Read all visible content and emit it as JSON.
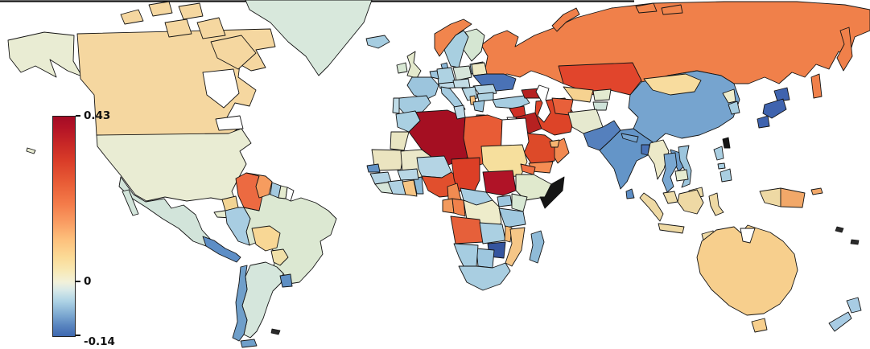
{
  "figure": {
    "background": "#ffffff"
  },
  "chart_data": {
    "type": "choropleth_map",
    "title": "",
    "projection": "world-equirectangular",
    "legend_position": "left",
    "no_data_color": "#ffffff",
    "colorbar": {
      "orientation": "vertical",
      "min": -0.14,
      "max": 0.43,
      "ticks": [
        {
          "label": "0.43",
          "value": 0.43
        },
        {
          "label": "0",
          "value": 0
        },
        {
          "label": "-0.14",
          "value": -0.14
        }
      ],
      "gradient_stops": [
        {
          "pos": 0,
          "color": "#a40b25"
        },
        {
          "pos": 0.05,
          "color": "#b31326"
        },
        {
          "pos": 0.12,
          "color": "#c62626"
        },
        {
          "pos": 0.2,
          "color": "#d93c28"
        },
        {
          "pos": 0.3,
          "color": "#e85c36"
        },
        {
          "pos": 0.4,
          "color": "#f47c4a"
        },
        {
          "pos": 0.48,
          "color": "#f99c62"
        },
        {
          "pos": 0.56,
          "color": "#fdc07c"
        },
        {
          "pos": 0.64,
          "color": "#fbda96"
        },
        {
          "pos": 0.7,
          "color": "#f8e8b4"
        },
        {
          "pos": 0.754,
          "color": "#f2f1da"
        },
        {
          "pos": 0.79,
          "color": "#d8e9e8"
        },
        {
          "pos": 0.84,
          "color": "#aed3e5"
        },
        {
          "pos": 0.9,
          "color": "#7fabd2"
        },
        {
          "pos": 0.95,
          "color": "#5a86c0"
        },
        {
          "pos": 1,
          "color": "#3e68b0"
        }
      ]
    },
    "countries": {
      "canada": {
        "name": "Canada",
        "value": 0.1,
        "color": "#f5d7a0"
      },
      "usa": {
        "name": "United States",
        "value": 0.01,
        "color": "#e9ecd3"
      },
      "greenland": {
        "name": "Greenland",
        "value": 0.0,
        "color": "#d8e8dc"
      },
      "mexico": {
        "name": "Mexico",
        "value": -0.01,
        "color": "#d2e4da"
      },
      "central_america": {
        "name": "Central America",
        "value": -0.09,
        "color": "#5d8ec6"
      },
      "cuba": {
        "name": "Cuba",
        "value": 0.01,
        "color": "#e8edd2"
      },
      "hispaniola": {
        "name": "Hispaniola",
        "value": -0.07,
        "color": "#74a3cf"
      },
      "colombia": {
        "name": "Colombia",
        "value": 0.25,
        "color": "#ec6a41"
      },
      "venezuela": {
        "name": "Venezuela",
        "value": 0.17,
        "color": "#f69c5f"
      },
      "guyana": {
        "name": "Guyana",
        "value": -0.05,
        "color": "#a3c9df"
      },
      "suriname": {
        "name": "Suriname",
        "value": 0.01,
        "color": "#e5ebcf"
      },
      "french_guiana": {
        "name": "French Guiana",
        "value": null,
        "color": "#ffffff"
      },
      "ecuador": {
        "name": "Ecuador",
        "value": 0.09,
        "color": "#f2d494"
      },
      "peru": {
        "name": "Peru",
        "value": -0.04,
        "color": "#a8cde2"
      },
      "brazil": {
        "name": "Brazil",
        "value": 0.005,
        "color": "#dce8d2"
      },
      "bolivia": {
        "name": "Bolivia",
        "value": 0.09,
        "color": "#f8d795"
      },
      "paraguay": {
        "name": "Paraguay",
        "value": 0.05,
        "color": "#f0e0a8"
      },
      "chile": {
        "name": "Chile",
        "value": -0.075,
        "color": "#6f9fca"
      },
      "argentina": {
        "name": "Argentina",
        "value": -0.005,
        "color": "#d5e6dc"
      },
      "uruguay": {
        "name": "Uruguay",
        "value": -0.09,
        "color": "#5e8fc4"
      },
      "falkland": {
        "name": "Falkland Is.",
        "value": null,
        "color": "#333333"
      },
      "iceland": {
        "name": "Iceland",
        "value": -0.04,
        "color": "#a6cde1"
      },
      "ireland": {
        "name": "Ireland",
        "value": -0.01,
        "color": "#d8e8d4"
      },
      "uk": {
        "name": "United Kingdom",
        "value": 0.015,
        "color": "#e4e9cc"
      },
      "norway": {
        "name": "Norway",
        "value": 0.21,
        "color": "#f1854d"
      },
      "sweden": {
        "name": "Sweden",
        "value": -0.04,
        "color": "#a8cfe0"
      },
      "finland": {
        "name": "Finland",
        "value": 0.0,
        "color": "#d5e6d2"
      },
      "baltics": {
        "name": "Baltic States",
        "value": -0.03,
        "color": "#b6d6e4"
      },
      "denmark": {
        "name": "Denmark",
        "value": -0.06,
        "color": "#8ab6d6"
      },
      "benelux": {
        "name": "Benelux",
        "value": -0.05,
        "color": "#9cc5dd"
      },
      "germany": {
        "name": "Germany",
        "value": -0.035,
        "color": "#aed2e2"
      },
      "poland": {
        "name": "Poland",
        "value": -0.01,
        "color": "#d6e5da"
      },
      "belarus": {
        "name": "Belarus",
        "value": 0.03,
        "color": "#ede9c4"
      },
      "ukraine": {
        "name": "Ukraine",
        "value": -0.105,
        "color": "#4a72b6"
      },
      "france": {
        "name": "France",
        "value": -0.05,
        "color": "#9cc5dd"
      },
      "spain": {
        "name": "Spain",
        "value": -0.045,
        "color": "#a4cbe0"
      },
      "portugal": {
        "name": "Portugal",
        "value": -0.025,
        "color": "#c0dce7"
      },
      "italy": {
        "name": "Italy",
        "value": -0.045,
        "color": "#a4cbe0"
      },
      "alpine_states": {
        "name": "Switzerland / Austria",
        "value": -0.03,
        "color": "#bcd8e6"
      },
      "czech_hungary": {
        "name": "Czechia / Hungary",
        "value": -0.02,
        "color": "#c2dce5"
      },
      "romania": {
        "name": "Romania",
        "value": -0.03,
        "color": "#b8d6e4"
      },
      "balkans": {
        "name": "Western Balkans",
        "value": -0.03,
        "color": "#b6d6e4"
      },
      "bulgaria": {
        "name": "Bulgaria",
        "value": -0.035,
        "color": "#aed2e2"
      },
      "albania": {
        "name": "Albania",
        "value": 0.13,
        "color": "#f5bf7e"
      },
      "greece": {
        "name": "Greece",
        "value": -0.05,
        "color": "#9cc5dd"
      },
      "turkey": {
        "name": "Turkey",
        "value": -0.04,
        "color": "#a6cde1"
      },
      "russia": {
        "name": "Russia",
        "value": 0.23,
        "color": "#f0804a"
      },
      "kazakhstan": {
        "name": "Kazakhstan",
        "value": 0.31,
        "color": "#e1452c"
      },
      "uzbekistan": {
        "name": "Uzbekistan",
        "value": 0.1,
        "color": "#f6d290"
      },
      "turkmenistan": {
        "name": "Turkmenistan",
        "value": 0.27,
        "color": "#e8603a"
      },
      "kyrgyzstan": {
        "name": "Kyrgyzstan",
        "value": 0.01,
        "color": "#e3ead0"
      },
      "tajikistan": {
        "name": "Tajikistan",
        "value": -0.01,
        "color": "#cfe3da"
      },
      "afghanistan": {
        "name": "Afghanistan",
        "value": 0.015,
        "color": "#e6e9cf"
      },
      "pakistan": {
        "name": "Pakistan",
        "value": -0.1,
        "color": "#5580bd"
      },
      "india": {
        "name": "India",
        "value": -0.085,
        "color": "#6495c8"
      },
      "nepal": {
        "name": "Nepal",
        "value": -0.07,
        "color": "#74a3cf"
      },
      "bangladesh": {
        "name": "Bangladesh",
        "value": -0.105,
        "color": "#4a72b6"
      },
      "sri_lanka": {
        "name": "Sri Lanka",
        "value": -0.09,
        "color": "#5d8ec6"
      },
      "china": {
        "name": "China",
        "value": -0.07,
        "color": "#76a4cf"
      },
      "mongolia": {
        "name": "Mongolia",
        "value": 0.085,
        "color": "#f8dc9e"
      },
      "north_korea": {
        "name": "North Korea",
        "value": 0.02,
        "color": "#efedcc"
      },
      "south_korea": {
        "name": "South Korea",
        "value": -0.04,
        "color": "#a6cde1"
      },
      "japan": {
        "name": "Japan",
        "value": -0.12,
        "color": "#3f63ae"
      },
      "taiwan": {
        "name": "Taiwan",
        "value": null,
        "color": "#151515"
      },
      "myanmar": {
        "name": "Myanmar",
        "value": 0.02,
        "color": "#ece9c8"
      },
      "thailand": {
        "name": "Thailand",
        "value": -0.065,
        "color": "#79a7d1"
      },
      "laos": {
        "name": "Laos",
        "value": -0.075,
        "color": "#6d9cca"
      },
      "vietnam": {
        "name": "Vietnam",
        "value": -0.05,
        "color": "#9cc5dd"
      },
      "cambodia": {
        "name": "Cambodia",
        "value": 0.01,
        "color": "#e6ecd0"
      },
      "malaysia": {
        "name": "Malaysia",
        "value": 0.05,
        "color": "#eeddab"
      },
      "indonesia": {
        "name": "Indonesia",
        "value": 0.06,
        "color": "#eed9a4"
      },
      "philippines": {
        "name": "Philippines",
        "value": -0.04,
        "color": "#a9cee1"
      },
      "papua_new_guinea": {
        "name": "Papua New Guinea",
        "value": 0.16,
        "color": "#f2a869"
      },
      "australia": {
        "name": "Australia",
        "value": 0.1,
        "color": "#f7cf8d"
      },
      "new_zealand": {
        "name": "New Zealand",
        "value": -0.045,
        "color": "#a8cce4"
      },
      "pacific_islands": {
        "name": "Pacific Islands",
        "value": null,
        "color": "#333333"
      },
      "caucasus": {
        "name": "Azerbaijan / Caucasus",
        "value": 0.36,
        "color": "#b52222"
      },
      "syria": {
        "name": "Syria",
        "value": 0.34,
        "color": "#d03026"
      },
      "iraq": {
        "name": "Iraq",
        "value": 0.38,
        "color": "#b62121"
      },
      "iran": {
        "name": "Iran",
        "value": 0.31,
        "color": "#dd4428"
      },
      "jordan_israel": {
        "name": "Jordan / Israel",
        "value": null,
        "color": "#ffffff"
      },
      "saudi_arabia": {
        "name": "Saudi Arabia",
        "value": 0.3,
        "color": "#dd4a29"
      },
      "yemen": {
        "name": "Yemen",
        "value": 0.19,
        "color": "#f58d54"
      },
      "oman": {
        "name": "Oman",
        "value": 0.19,
        "color": "#f28950"
      },
      "uae": {
        "name": "United Arab Emirates",
        "value": 0.14,
        "color": "#f8b470"
      },
      "morocco": {
        "name": "Morocco",
        "value": -0.04,
        "color": "#aad0e2"
      },
      "algeria": {
        "name": "Algeria",
        "value": 0.42,
        "color": "#a50f22"
      },
      "tunisia": {
        "name": "Tunisia",
        "value": -0.03,
        "color": "#bcd8e6"
      },
      "libya": {
        "name": "Libya",
        "value": 0.28,
        "color": "#e85c36"
      },
      "egypt": {
        "name": "Egypt",
        "value": null,
        "color": "#ffffff"
      },
      "western_sahara": {
        "name": "Western Sahara",
        "value": 0.03,
        "color": "#e9e5c2"
      },
      "mauritania": {
        "name": "Mauritania",
        "value": 0.03,
        "color": "#ebe4c0"
      },
      "mali": {
        "name": "Mali",
        "value": 0.02,
        "color": "#ebe8c9"
      },
      "senegal": {
        "name": "Senegal",
        "value": -0.085,
        "color": "#6292c5"
      },
      "guinea": {
        "name": "Guinea",
        "value": -0.035,
        "color": "#b4d4e4"
      },
      "sierra_leone": {
        "name": "Sierra Leone / Liberia",
        "value": -0.01,
        "color": "#d6e6da"
      },
      "ivory_coast": {
        "name": "Côte d'Ivoire",
        "value": -0.035,
        "color": "#b0d2e3"
      },
      "ghana": {
        "name": "Ghana",
        "value": 0.12,
        "color": "#f6c585"
      },
      "togo_benin": {
        "name": "Togo / Benin",
        "value": -0.06,
        "color": "#8cb9d7"
      },
      "burkina_faso": {
        "name": "Burkina Faso",
        "value": -0.03,
        "color": "#b8d7e5"
      },
      "niger": {
        "name": "Niger",
        "value": -0.035,
        "color": "#b4d4e4"
      },
      "nigeria": {
        "name": "Nigeria",
        "value": 0.3,
        "color": "#e14f2d"
      },
      "chad": {
        "name": "Chad",
        "value": 0.32,
        "color": "#dc3f26"
      },
      "sudan": {
        "name": "Sudan",
        "value": 0.08,
        "color": "#f6df9d"
      },
      "south_sudan": {
        "name": "South Sudan",
        "value": 0.4,
        "color": "#b01327"
      },
      "eritrea": {
        "name": "Eritrea",
        "value": 0.24,
        "color": "#ef7043"
      },
      "ethiopia": {
        "name": "Ethiopia",
        "value": 0.01,
        "color": "#e0e9cd"
      },
      "somalia": {
        "name": "Somalia",
        "value": null,
        "color": "#151515"
      },
      "cameroon": {
        "name": "Cameroon",
        "value": 0.2,
        "color": "#f18b51"
      },
      "central_african_republic": {
        "name": "Central African Republic",
        "value": -0.045,
        "color": "#a8cde2"
      },
      "uganda": {
        "name": "Uganda",
        "value": -0.05,
        "color": "#9dc6de"
      },
      "kenya": {
        "name": "Kenya",
        "value": 0.0,
        "color": "#d8e8d4"
      },
      "gabon": {
        "name": "Gabon",
        "value": 0.18,
        "color": "#f29a5d"
      },
      "congo": {
        "name": "Congo",
        "value": 0.21,
        "color": "#f0814b"
      },
      "drc": {
        "name": "DR Congo",
        "value": 0.02,
        "color": "#eeeccb"
      },
      "tanzania": {
        "name": "Tanzania",
        "value": -0.05,
        "color": "#a0c8df"
      },
      "angola": {
        "name": "Angola",
        "value": 0.27,
        "color": "#e6603a"
      },
      "zambia": {
        "name": "Zambia",
        "value": -0.04,
        "color": "#abd0e2"
      },
      "malawi": {
        "name": "Malawi",
        "value": 0.15,
        "color": "#f3b873"
      },
      "mozambique": {
        "name": "Mozambique",
        "value": 0.12,
        "color": "#f5c687"
      },
      "zimbabwe": {
        "name": "Zimbabwe",
        "value": -0.13,
        "color": "#35559f"
      },
      "botswana": {
        "name": "Botswana",
        "value": -0.05,
        "color": "#9dc6de"
      },
      "namibia": {
        "name": "Namibia",
        "value": -0.045,
        "color": "#a6cde1"
      },
      "south_africa": {
        "name": "South Africa",
        "value": -0.045,
        "color": "#a9cee1"
      },
      "madagascar": {
        "name": "Madagascar",
        "value": -0.055,
        "color": "#8fbbd8"
      }
    }
  }
}
